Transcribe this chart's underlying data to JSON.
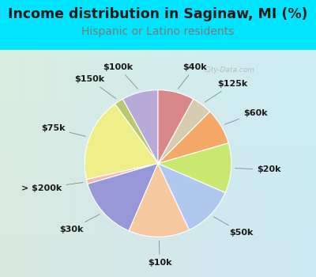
{
  "title": "Income distribution in Saginaw, MI (%)",
  "subtitle": "Hispanic or Latino residents",
  "title_color": "#1a1a1a",
  "subtitle_color": "#7a7a7a",
  "bg_top": "#00e5ff",
  "chart_bg_left": "#c8ecd8",
  "chart_bg_right": "#d8eef5",
  "watermark": "City-Data.com",
  "labels": [
    "$100k",
    "$150k",
    "$75k",
    "> $200k",
    "$30k",
    "$10k",
    "$50k",
    "$20k",
    "$60k",
    "$125k",
    "$40k"
  ],
  "values": [
    8.0,
    2.0,
    18.5,
    1.0,
    14.0,
    13.5,
    11.5,
    11.0,
    8.0,
    4.5,
    8.0
  ],
  "colors": [
    "#b8aad8",
    "#b8c870",
    "#f0ee88",
    "#f5b8b8",
    "#9898d8",
    "#f5c8a0",
    "#b0c8ee",
    "#c8e870",
    "#f5a868",
    "#d8ccb0",
    "#d88888"
  ],
  "startangle": 90,
  "label_fontsize": 8.0,
  "title_fontsize": 12.5,
  "subtitle_fontsize": 10.0
}
